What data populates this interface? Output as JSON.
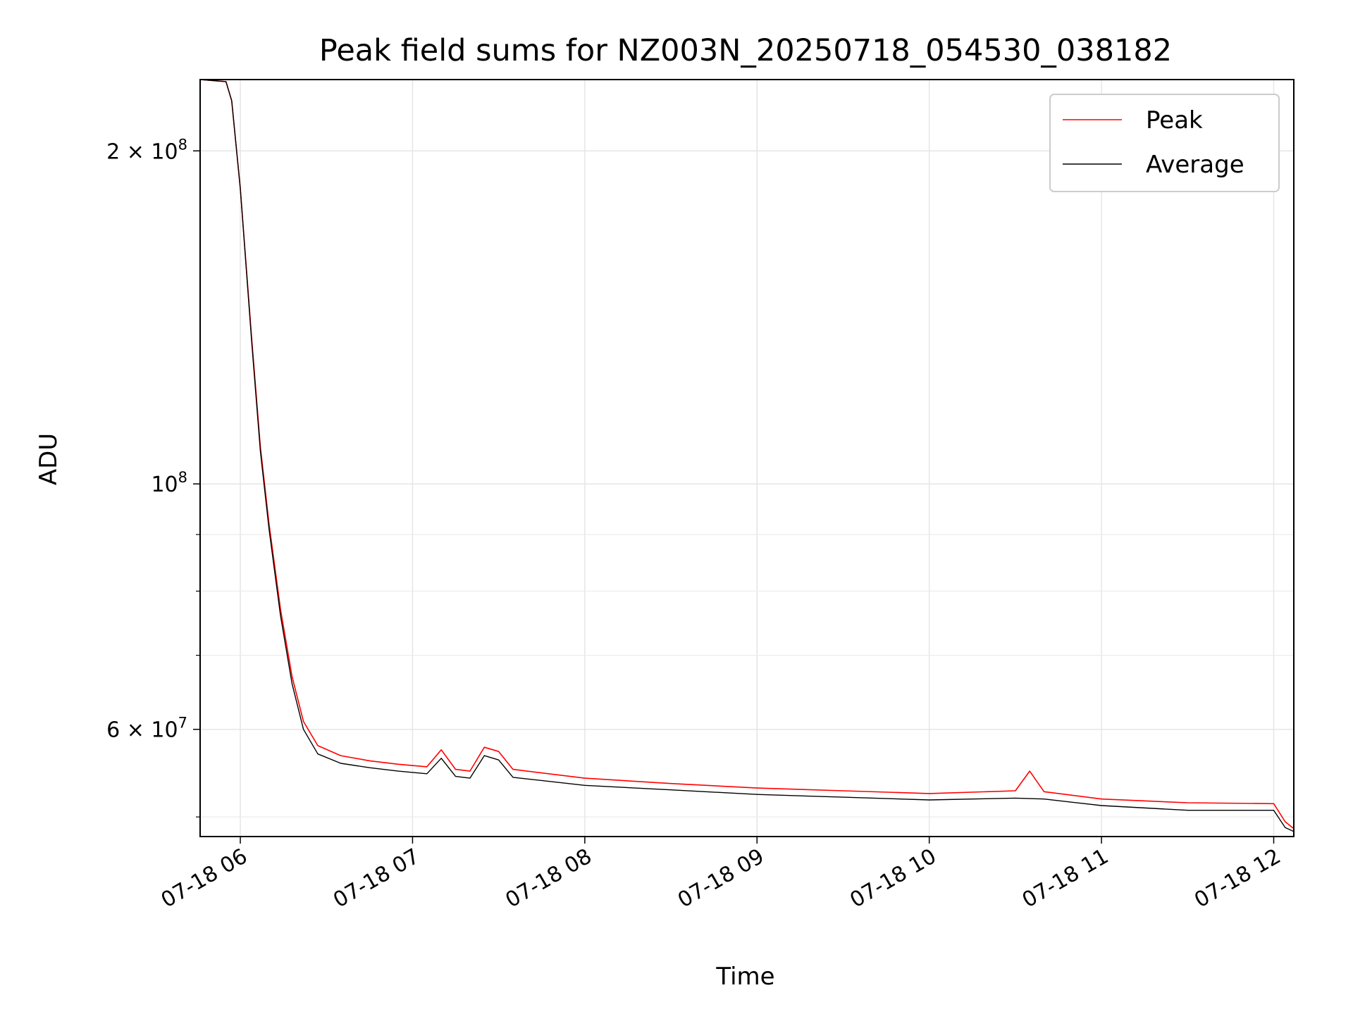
{
  "chart_data": {
    "type": "line",
    "title": "Peak field sums for NZ003N_20250718_054530_038182",
    "xlabel": "Time",
    "ylabel": "ADU",
    "yscale": "log",
    "xlim": [
      "2025-07-18 05:46",
      "2025-07-18 12:07"
    ],
    "ylim": [
      48000000,
      232000000
    ],
    "grid": true,
    "legend": {
      "position": "top-right",
      "entries": [
        "Peak",
        "Average"
      ]
    },
    "x_ticks": [
      {
        "value": "2025-07-18 06:00",
        "label": "07-18 06"
      },
      {
        "value": "2025-07-18 07:00",
        "label": "07-18 07"
      },
      {
        "value": "2025-07-18 08:00",
        "label": "07-18 08"
      },
      {
        "value": "2025-07-18 09:00",
        "label": "07-18 09"
      },
      {
        "value": "2025-07-18 10:00",
        "label": "07-18 10"
      },
      {
        "value": "2025-07-18 11:00",
        "label": "07-18 11"
      },
      {
        "value": "2025-07-18 12:00",
        "label": "07-18 12"
      }
    ],
    "y_ticks": [
      {
        "value": 200000000,
        "label": "2 × 10",
        "exp": "8"
      },
      {
        "value": 100000000,
        "label": "10",
        "exp": "8"
      },
      {
        "value": 60000000,
        "label": "6 × 10",
        "exp": "7"
      }
    ],
    "y_minor_ticks": [
      50000000,
      70000000,
      80000000,
      90000000
    ],
    "series": [
      {
        "name": "Peak",
        "color": "#ff0000",
        "points": [
          [
            "2025-07-18 05:46",
            232000000
          ],
          [
            "2025-07-18 05:55",
            231000000
          ],
          [
            "2025-07-18 05:57",
            222000000
          ],
          [
            "2025-07-18 06:00",
            185000000
          ],
          [
            "2025-07-18 06:04",
            135000000
          ],
          [
            "2025-07-18 06:07",
            108000000
          ],
          [
            "2025-07-18 06:10",
            92000000
          ],
          [
            "2025-07-18 06:14",
            77000000
          ],
          [
            "2025-07-18 06:18",
            67000000
          ],
          [
            "2025-07-18 06:22",
            61000000
          ],
          [
            "2025-07-18 06:27",
            58000000
          ],
          [
            "2025-07-18 06:35",
            56800000
          ],
          [
            "2025-07-18 06:45",
            56200000
          ],
          [
            "2025-07-18 06:55",
            55800000
          ],
          [
            "2025-07-18 07:05",
            55500000
          ],
          [
            "2025-07-18 07:10",
            57500000
          ],
          [
            "2025-07-18 07:15",
            55200000
          ],
          [
            "2025-07-18 07:20",
            55000000
          ],
          [
            "2025-07-18 07:25",
            57800000
          ],
          [
            "2025-07-18 07:30",
            57300000
          ],
          [
            "2025-07-18 07:35",
            55200000
          ],
          [
            "2025-07-18 08:00",
            54200000
          ],
          [
            "2025-07-18 08:30",
            53600000
          ],
          [
            "2025-07-18 09:00",
            53100000
          ],
          [
            "2025-07-18 09:30",
            52800000
          ],
          [
            "2025-07-18 10:00",
            52500000
          ],
          [
            "2025-07-18 10:30",
            52800000
          ],
          [
            "2025-07-18 10:35",
            55000000
          ],
          [
            "2025-07-18 10:40",
            52700000
          ],
          [
            "2025-07-18 11:00",
            51900000
          ],
          [
            "2025-07-18 11:30",
            51500000
          ],
          [
            "2025-07-18 12:00",
            51400000
          ],
          [
            "2025-07-18 12:04",
            49500000
          ],
          [
            "2025-07-18 12:07",
            48800000
          ]
        ]
      },
      {
        "name": "Average",
        "color": "#000000",
        "points": [
          [
            "2025-07-18 05:46",
            232000000
          ],
          [
            "2025-07-18 05:55",
            231000000
          ],
          [
            "2025-07-18 05:57",
            222000000
          ],
          [
            "2025-07-18 06:00",
            185000000
          ],
          [
            "2025-07-18 06:04",
            134000000
          ],
          [
            "2025-07-18 06:07",
            107000000
          ],
          [
            "2025-07-18 06:10",
            91000000
          ],
          [
            "2025-07-18 06:14",
            76000000
          ],
          [
            "2025-07-18 06:18",
            66000000
          ],
          [
            "2025-07-18 06:22",
            60000000
          ],
          [
            "2025-07-18 06:27",
            57000000
          ],
          [
            "2025-07-18 06:35",
            55900000
          ],
          [
            "2025-07-18 06:45",
            55400000
          ],
          [
            "2025-07-18 06:55",
            55000000
          ],
          [
            "2025-07-18 07:05",
            54700000
          ],
          [
            "2025-07-18 07:10",
            56500000
          ],
          [
            "2025-07-18 07:15",
            54400000
          ],
          [
            "2025-07-18 07:20",
            54200000
          ],
          [
            "2025-07-18 07:25",
            56800000
          ],
          [
            "2025-07-18 07:30",
            56300000
          ],
          [
            "2025-07-18 07:35",
            54300000
          ],
          [
            "2025-07-18 08:00",
            53400000
          ],
          [
            "2025-07-18 08:30",
            52900000
          ],
          [
            "2025-07-18 09:00",
            52400000
          ],
          [
            "2025-07-18 09:30",
            52100000
          ],
          [
            "2025-07-18 10:00",
            51800000
          ],
          [
            "2025-07-18 10:30",
            52000000
          ],
          [
            "2025-07-18 10:40",
            51900000
          ],
          [
            "2025-07-18 11:00",
            51200000
          ],
          [
            "2025-07-18 11:30",
            50700000
          ],
          [
            "2025-07-18 12:00",
            50700000
          ],
          [
            "2025-07-18 12:04",
            48900000
          ],
          [
            "2025-07-18 12:07",
            48500000
          ]
        ]
      }
    ]
  }
}
